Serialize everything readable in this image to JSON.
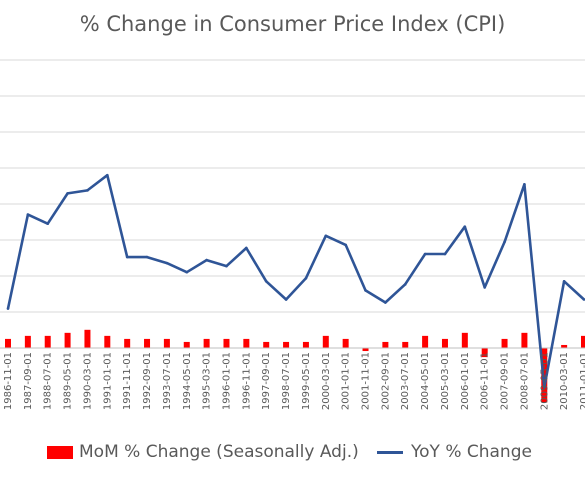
{
  "chart_data": {
    "type": "bar+line",
    "title": "% Change in Consumer Price Index (CPI)",
    "xlabel": "",
    "ylabel": "",
    "grid": true,
    "legend_position": "bottom",
    "categories": [
      "1986-11-01",
      "1987-09-01",
      "1988-07-01",
      "1989-05-01",
      "1990-03-01",
      "1991-01-01",
      "1991-11-01",
      "1992-09-01",
      "1993-07-01",
      "1994-05-01",
      "1995-03-01",
      "1996-01-01",
      "1996-11-01",
      "1997-09-01",
      "1998-07-01",
      "1999-05-01",
      "2000-03-01",
      "2001-01-01",
      "2001-11-01",
      "2002-09-01",
      "2003-07-01",
      "2004-05-01",
      "2005-03-01",
      "2006-01-01",
      "2006-11-01",
      "2007-09-01",
      "2008-07-01",
      "2009-05-01",
      "2010-03-01",
      "2011-01-01"
    ],
    "series": [
      {
        "name": "MoM % Change (Seasonally Adj.)",
        "type": "bar",
        "color": "#ff0000",
        "values": [
          0.3,
          0.4,
          0.4,
          0.5,
          0.6,
          0.4,
          0.3,
          0.3,
          0.3,
          0.2,
          0.3,
          0.3,
          0.3,
          0.2,
          0.2,
          0.2,
          0.4,
          0.3,
          -0.1,
          0.2,
          0.2,
          0.4,
          0.3,
          0.5,
          -0.3,
          0.3,
          0.5,
          -1.8,
          0.1,
          0.4
        ]
      },
      {
        "name": "YoY % Change",
        "type": "line",
        "color": "#2f5597",
        "values": [
          1.3,
          4.4,
          4.1,
          5.1,
          5.2,
          5.7,
          3.0,
          3.0,
          2.8,
          2.5,
          2.9,
          2.7,
          3.3,
          2.2,
          1.6,
          2.3,
          3.7,
          3.4,
          1.9,
          1.5,
          2.1,
          3.1,
          3.1,
          4.0,
          2.0,
          3.5,
          5.4,
          -1.3,
          2.2,
          1.6
        ]
      }
    ],
    "ylim": [
      -2.5,
      9.5
    ],
    "colors": {
      "bar": "#ff0000",
      "line": "#2f5597",
      "grid": "#d9d9d9",
      "axis": "#bfbfbf"
    }
  }
}
